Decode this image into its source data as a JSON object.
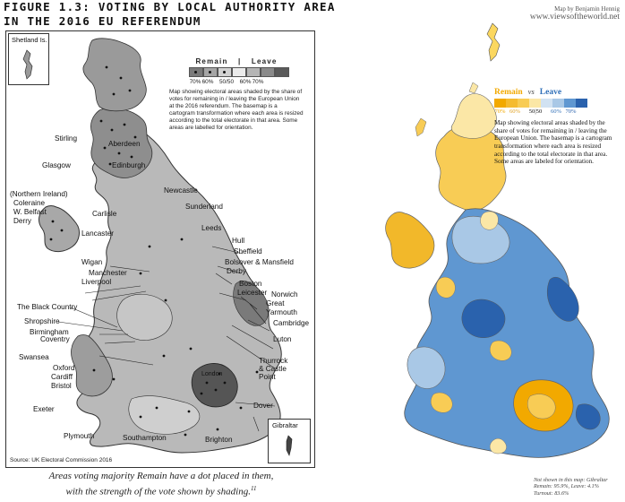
{
  "figure": {
    "title_line1": "FIGURE 1.3: VOTING BY LOCAL AUTHORITY AREA",
    "title_line2": "IN THE 2016 EU REFERENDUM",
    "caption_line1": "Areas voting majority Remain have a dot placed in them,",
    "caption_line2": "with the strength of the vote shown by shading.",
    "caption_footnote": "11"
  },
  "left_map": {
    "inset_shetland": "Shetland Is.",
    "inset_gibraltar": "Gibraltar",
    "legend": {
      "remain": "Remain",
      "separator": "|",
      "leave": "Leave",
      "ticks": [
        "70%",
        "60%",
        "50/50",
        "60%",
        "70%"
      ],
      "description": "Map showing electoral areas shaded by the share of votes for remaining in / leaving the European Union at the 2016 referendum. The basemap is a cartogram transformation where each area is resized according to the total electorate in that area. Some areas are labelled for orientation."
    },
    "source": "Source: UK Electoral Commission 2016",
    "labels": {
      "aberdeen": "Aberdeen",
      "stirling": "Stirling",
      "glasgow": "Glasgow",
      "edinburgh": "Edinburgh",
      "northern_ireland": "(Northern Ireland)",
      "coleraine": "Coleraine",
      "w_belfast": "W. Belfast",
      "derry": "Derry",
      "newcastle": "Newcastle",
      "carlisle": "Carlisle",
      "sunderland": "Sunderland",
      "leeds": "Leeds",
      "lancaster": "Lancaster",
      "hull": "Hull",
      "sheffield": "Sheffield",
      "wigan": "Wigan",
      "bolsover": "Bolsover & Mansfield",
      "manchester": "Manchester",
      "derby": "Derby",
      "liverpool": "Liverpool",
      "boston": "Boston",
      "leicester": "Leicester",
      "norwich": "Norwich",
      "black_country": "The Black Country",
      "great_yarmouth": "Great Yarmouth",
      "shropshire": "Shropshire",
      "cambridge": "Cambridge",
      "birmingham": "Birmingham",
      "luton": "Luton",
      "coventry": "Coventry",
      "swansea": "Swansea",
      "oxford": "Oxford",
      "cardiff": "Cardiff",
      "thurrock": "Thurrock",
      "castle_point": "& Castle",
      "point": "Point",
      "bristol": "Bristol",
      "london": "London",
      "exeter": "Exeter",
      "dover": "Dover",
      "plymouth": "Plymouth",
      "southampton": "Southampton",
      "brighton": "Brighton"
    }
  },
  "right_map": {
    "credit_line1": "Map by Benjamin Hennig",
    "credit_line2": "www.viewsoftheworld.net",
    "legend": {
      "remain": "Remain",
      "vs": "vs",
      "leave": "Leave",
      "ticks": [
        "70%",
        "60%",
        "50|50",
        "60%",
        "70%"
      ],
      "description": "Map showing electoral areas shaded by the share of votes for remaining in / leaving the European Union. The basemap is a cartogram transformation where each area is resized according to the total electorate in that area. Some areas are labeled for orientation."
    },
    "notes": "Not shown in this map: Gibraltar Remain: 95.9%, Leave: 4.1% Turnout: 83.6%"
  },
  "colors": {
    "remain_strong": "#f2a900",
    "remain_mid": "#f8cc55",
    "remain_light": "#fbe7a6",
    "leave_light": "#a9c8e6",
    "leave_mid": "#5f97d1",
    "leave_strong": "#2a62ad",
    "grey_light": "#d6d6d6",
    "grey_mid": "#a8a8a8",
    "grey_dark": "#6a6a6a"
  }
}
